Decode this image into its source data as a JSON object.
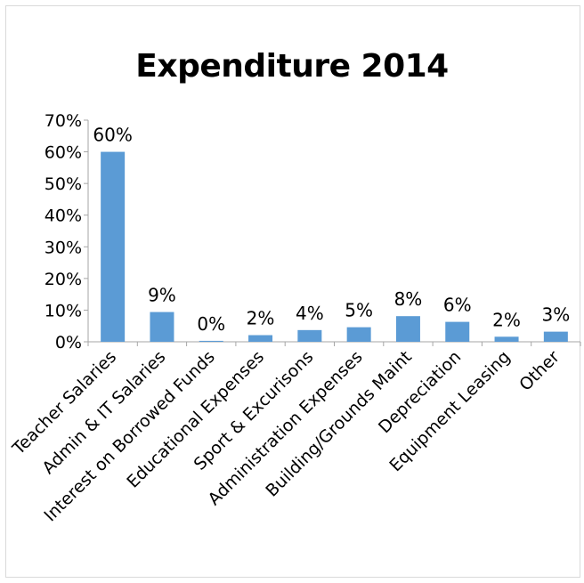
{
  "chart_data": {
    "type": "bar",
    "title": "Expenditure 2014",
    "categories": [
      "Teacher Salaries",
      "Admin & IT Salaries",
      "Interest on Borrowed Funds",
      "Educational Expenses",
      "Sport & Excurisons",
      "Administration Expenses",
      "Building/Grounds Maint",
      "Depreciation",
      "Equipment Leasing",
      "Other"
    ],
    "values": [
      60,
      9.4,
      0.3,
      2.1,
      3.7,
      4.6,
      8.1,
      6.3,
      1.6,
      3.2
    ],
    "data_labels": [
      "60%",
      "9%",
      "0%",
      "2%",
      "4%",
      "5%",
      "8%",
      "6%",
      "2%",
      "3%"
    ],
    "y_ticks": [
      "0%",
      "10%",
      "20%",
      "30%",
      "40%",
      "50%",
      "60%",
      "70%"
    ],
    "ylim": [
      0,
      70
    ],
    "bar_color": "#5b9bd5",
    "axis_color": "#a6a6a6",
    "grid": false,
    "legend": "none"
  }
}
